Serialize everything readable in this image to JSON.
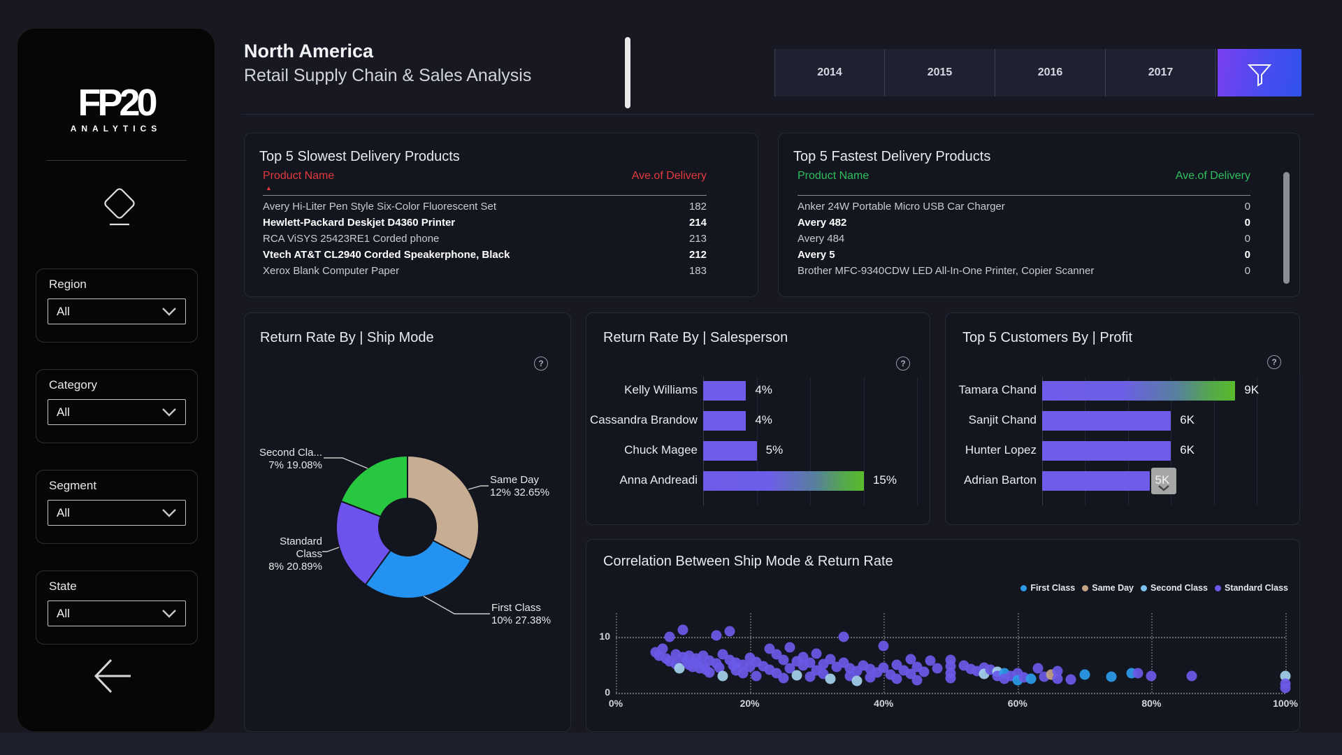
{
  "header": {
    "title": "North America",
    "subtitle": "Retail Supply Chain & Sales Analysis",
    "years": [
      "2014",
      "2015",
      "2016",
      "2017"
    ],
    "filter_icon": "funnel-icon"
  },
  "sidebar": {
    "logo_main": "FP20",
    "logo_sub": "ANALYTICS",
    "eraser_icon": "clear-filters-eraser",
    "back_icon": "back-arrow",
    "slicers": [
      {
        "label": "Region",
        "value": "All"
      },
      {
        "label": "Category",
        "value": "All"
      },
      {
        "label": "Segment",
        "value": "All"
      },
      {
        "label": "State",
        "value": "All"
      }
    ]
  },
  "slowest_table": {
    "title": "Top 5 Slowest Delivery Products",
    "col_product": "Product Name",
    "col_value": "Ave.of Delivery",
    "accent": "#e23a3e",
    "sort_indicator": "ascending-triangle",
    "rows": [
      {
        "name": "Avery Hi-Liter Pen Style Six-Color Fluorescent Set",
        "value": "182"
      },
      {
        "name": "Hewlett-Packard Deskjet D4360 Printer",
        "value": "214"
      },
      {
        "name": "RCA ViSYS 25423RE1 Corded phone",
        "value": "213"
      },
      {
        "name": "Vtech AT&T CL2940 Corded Speakerphone, Black",
        "value": "212"
      },
      {
        "name": "Xerox Blank Computer Paper",
        "value": "183"
      }
    ]
  },
  "fastest_table": {
    "title": "Top 5 Fastest Delivery Products",
    "col_product": "Product Name",
    "col_value": "Ave.of Delivery",
    "accent": "#2fbf5e",
    "rows": [
      {
        "name": "Anker 24W Portable Micro USB Car Charger",
        "value": "0"
      },
      {
        "name": "Avery 482",
        "value": "0"
      },
      {
        "name": "Avery 484",
        "value": "0"
      },
      {
        "name": "Avery 5",
        "value": "0"
      },
      {
        "name": "Brother MFC-9340CDW LED All-In-One Printer, Copier Scanner",
        "value": "0"
      }
    ]
  },
  "donut_chart": {
    "title": "Return Rate By | Ship Mode",
    "type": "pie",
    "slices": [
      {
        "label": "Same Day",
        "count_pct": "12%",
        "share_pct": "32.65%",
        "value": 32.65,
        "color": "#c7ae92"
      },
      {
        "label": "First Class",
        "count_pct": "10%",
        "share_pct": "27.38%",
        "value": 27.38,
        "color": "#2492f0"
      },
      {
        "label": "Standard Class",
        "count_pct": "8%",
        "share_pct": "20.89%",
        "value": 20.89,
        "color": "#6e52ee"
      },
      {
        "label": "Second Cla...",
        "count_pct": "7%",
        "share_pct": "19.08%",
        "value": 19.08,
        "color": "#27c840"
      }
    ]
  },
  "salesperson_chart": {
    "title": "Return Rate By | Salesperson",
    "type": "bar",
    "bars": [
      {
        "name": "Kelly Williams",
        "label": "4%",
        "value": 4,
        "gradient": false
      },
      {
        "name": "Cassandra Brandow",
        "label": "4%",
        "value": 4,
        "gradient": false
      },
      {
        "name": "Chuck Magee",
        "label": "5%",
        "value": 5,
        "gradient": false
      },
      {
        "name": "Anna Andreadi",
        "label": "15%",
        "value": 15,
        "gradient": true
      }
    ]
  },
  "customers_chart": {
    "title": "Top 5 Customers By | Profit",
    "type": "bar",
    "bars": [
      {
        "name": "Tamara Chand",
        "label": "9K",
        "value": 9,
        "gradient": true
      },
      {
        "name": "Sanjit Chand",
        "label": "6K",
        "value": 6,
        "gradient": false
      },
      {
        "name": "Hunter Lopez",
        "label": "6K",
        "value": 6,
        "gradient": false
      },
      {
        "name": "Adrian Barton",
        "label": "5K",
        "value": 5,
        "gradient": false,
        "scroll_indicator": true
      }
    ]
  },
  "scatter_chart": {
    "title": "Correlation Between Ship Mode & Return Rate",
    "type": "scatter",
    "legend": [
      {
        "label": "First Class",
        "key": "first",
        "color": "#2e9bea"
      },
      {
        "label": "Same Day",
        "key": "sameday",
        "color": "#c4a384"
      },
      {
        "label": "Second Class",
        "key": "second",
        "color": "#7cc2ee"
      },
      {
        "label": "Standard Class",
        "key": "standard",
        "color": "#6a5ae8"
      }
    ],
    "class_colors": [
      "#6a5ae8",
      "#2e9bea",
      "#a5d3ee",
      "#c4a384"
    ],
    "x_ticks": [
      "0%",
      "20%",
      "40%",
      "60%",
      "80%",
      "100%"
    ],
    "x_range": [
      0,
      100
    ],
    "y_ticks": [
      "10",
      "0"
    ],
    "y_range": [
      0,
      10
    ],
    "points": [
      [
        6,
        7.2,
        0
      ],
      [
        6.5,
        6.6,
        0
      ],
      [
        7,
        7.8,
        0
      ],
      [
        7.5,
        6.1,
        0
      ],
      [
        8,
        10,
        0
      ],
      [
        8,
        5.6,
        0
      ],
      [
        9,
        6.9,
        0
      ],
      [
        9,
        5.1,
        0
      ],
      [
        9.5,
        4.3,
        2
      ],
      [
        10,
        11.2,
        0
      ],
      [
        10,
        6.3,
        0
      ],
      [
        10.5,
        5.6,
        0
      ],
      [
        11,
        6.6,
        0
      ],
      [
        11,
        5,
        0
      ],
      [
        11.5,
        4.6,
        0
      ],
      [
        12,
        6.1,
        0
      ],
      [
        12,
        5.3,
        0
      ],
      [
        12.5,
        4.4,
        0
      ],
      [
        13,
        6.6,
        0
      ],
      [
        13,
        4.9,
        0
      ],
      [
        13.5,
        4.1,
        0
      ],
      [
        14,
        5.7,
        0
      ],
      [
        14,
        3.6,
        0
      ],
      [
        15,
        10.3,
        0
      ],
      [
        15,
        5.2,
        0
      ],
      [
        15.5,
        4.5,
        0
      ],
      [
        16,
        6.9,
        0
      ],
      [
        16,
        3,
        2
      ],
      [
        17,
        11,
        0
      ],
      [
        17,
        5.9,
        0
      ],
      [
        17.5,
        4.8,
        0
      ],
      [
        18,
        5.4,
        0
      ],
      [
        18,
        3.9,
        0
      ],
      [
        19,
        5,
        0
      ],
      [
        19,
        3.4,
        0
      ],
      [
        20,
        6.2,
        0
      ],
      [
        20,
        4.6,
        0
      ],
      [
        21,
        5.5,
        0
      ],
      [
        21,
        2.9,
        0
      ],
      [
        22,
        4.7,
        0
      ],
      [
        23,
        7.9,
        0
      ],
      [
        23,
        4.1,
        0
      ],
      [
        24,
        6.8,
        0
      ],
      [
        24,
        3.5,
        0
      ],
      [
        25,
        5.9,
        0
      ],
      [
        25,
        2.6,
        0
      ],
      [
        26,
        8.1,
        0
      ],
      [
        26,
        4.4,
        0
      ],
      [
        27,
        5.6,
        0
      ],
      [
        27,
        3.1,
        2
      ],
      [
        28,
        6.4,
        0
      ],
      [
        28,
        4.8,
        0
      ],
      [
        29,
        5.3,
        0
      ],
      [
        29,
        2.8,
        0
      ],
      [
        30,
        7,
        0
      ],
      [
        30,
        4,
        0
      ],
      [
        31,
        5.1,
        0
      ],
      [
        31,
        3.3,
        0
      ],
      [
        32,
        6,
        0
      ],
      [
        32,
        2.4,
        2
      ],
      [
        33,
        4.6,
        0
      ],
      [
        34,
        10,
        0
      ],
      [
        34,
        5.4,
        0
      ],
      [
        35,
        4.4,
        0
      ],
      [
        35,
        2.9,
        0
      ],
      [
        36,
        3.8,
        0
      ],
      [
        36,
        2.1,
        2
      ],
      [
        37,
        4.9,
        0
      ],
      [
        38,
        4.2,
        0
      ],
      [
        38,
        2.7,
        0
      ],
      [
        39,
        3.6,
        0
      ],
      [
        40,
        8.4,
        0
      ],
      [
        40,
        4.5,
        0
      ],
      [
        41,
        3.2,
        0
      ],
      [
        42,
        5,
        0
      ],
      [
        42,
        2.5,
        0
      ],
      [
        43,
        4,
        0
      ],
      [
        44,
        6,
        0
      ],
      [
        44,
        3.3,
        0
      ],
      [
        45,
        4.6,
        0
      ],
      [
        45,
        2.2,
        0
      ],
      [
        46,
        3.7,
        0
      ],
      [
        47,
        5.7,
        0
      ],
      [
        48,
        4.3,
        0
      ],
      [
        50,
        5.9,
        0
      ],
      [
        50,
        4.7,
        0
      ],
      [
        50,
        3.5,
        0
      ],
      [
        50,
        2.6,
        0
      ],
      [
        52,
        4.9,
        0
      ],
      [
        53,
        4.2,
        0
      ],
      [
        54,
        3.8,
        0
      ],
      [
        55,
        4.5,
        0
      ],
      [
        55,
        3.3,
        2
      ],
      [
        56,
        4.1,
        0
      ],
      [
        57,
        3.7,
        2
      ],
      [
        57,
        2.9,
        0
      ],
      [
        58,
        3.4,
        1
      ],
      [
        58,
        2.5,
        0
      ],
      [
        59,
        3,
        0
      ],
      [
        60,
        3.5,
        0
      ],
      [
        60,
        2.2,
        1
      ],
      [
        61,
        2.7,
        0
      ],
      [
        62,
        2.4,
        1
      ],
      [
        63,
        4.3,
        0
      ],
      [
        64,
        2.8,
        0
      ],
      [
        65,
        3.2,
        3
      ],
      [
        66,
        3.8,
        0
      ],
      [
        66,
        2.5,
        0
      ],
      [
        68,
        2.3,
        0
      ],
      [
        70,
        3.2,
        1
      ],
      [
        74,
        2.8,
        1
      ],
      [
        77,
        3.4,
        1
      ],
      [
        78,
        3.4,
        0
      ],
      [
        80,
        3,
        0
      ],
      [
        86,
        2.9,
        0
      ],
      [
        100,
        3,
        2
      ],
      [
        100,
        1.6,
        0
      ],
      [
        100,
        0.8,
        0
      ]
    ]
  }
}
